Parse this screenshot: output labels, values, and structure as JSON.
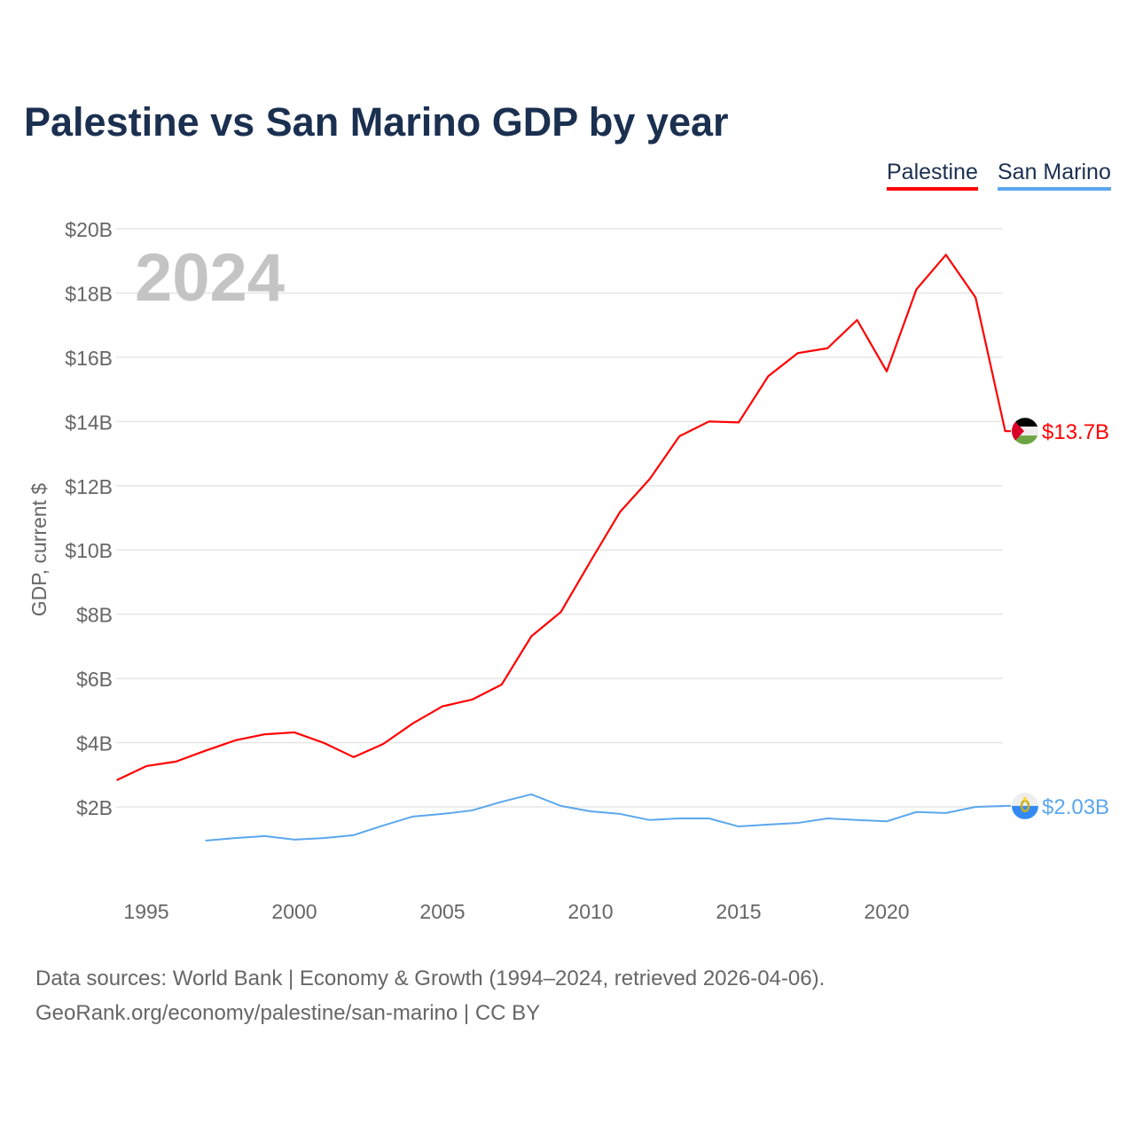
{
  "title": "Palestine vs San Marino GDP by year",
  "source_line1": "Data sources: World Bank | Economy & Growth (1994–2024, retrieved 2026-04-06).",
  "source_line2": "GeoRank.org/economy/palestine/san-marino | CC BY",
  "chart_data": {
    "type": "line",
    "title": "Palestine vs San Marino GDP by year",
    "ylabel": "GDP, current $",
    "xlabel": "",
    "year_watermark": "2024",
    "ylim": [
      0,
      20
    ],
    "xlim": [
      1994,
      2024
    ],
    "y_ticks": [
      {
        "v": 2,
        "label": "$2B"
      },
      {
        "v": 4,
        "label": "$4B"
      },
      {
        "v": 6,
        "label": "$6B"
      },
      {
        "v": 8,
        "label": "$8B"
      },
      {
        "v": 10,
        "label": "$10B"
      },
      {
        "v": 12,
        "label": "$12B"
      },
      {
        "v": 14,
        "label": "$14B"
      },
      {
        "v": 16,
        "label": "$16B"
      },
      {
        "v": 18,
        "label": "$18B"
      },
      {
        "v": 20,
        "label": "$20B"
      }
    ],
    "x_ticks": [
      {
        "v": 1995,
        "label": "1995"
      },
      {
        "v": 2000,
        "label": "2000"
      },
      {
        "v": 2005,
        "label": "2005"
      },
      {
        "v": 2010,
        "label": "2010"
      },
      {
        "v": 2015,
        "label": "2015"
      },
      {
        "v": 2020,
        "label": "2020"
      }
    ],
    "grid": true,
    "legend": "top-right",
    "series": [
      {
        "name": "Palestine",
        "color": "#ff0000",
        "flag": "palestine-flag",
        "end_label": "$13.7B",
        "x": [
          1994,
          1995,
          1996,
          1997,
          1998,
          1999,
          2000,
          2001,
          2002,
          2003,
          2004,
          2005,
          2006,
          2007,
          2008,
          2009,
          2010,
          2011,
          2012,
          2013,
          2014,
          2015,
          2016,
          2017,
          2018,
          2019,
          2020,
          2021,
          2022,
          2023,
          2024
        ],
        "values": [
          2.83,
          3.27,
          3.41,
          3.75,
          4.07,
          4.26,
          4.32,
          3.99,
          3.55,
          3.96,
          4.6,
          5.13,
          5.34,
          5.81,
          7.31,
          8.07,
          9.65,
          11.19,
          12.21,
          13.54,
          14.0,
          13.97,
          15.41,
          16.13,
          16.28,
          17.16,
          15.56,
          18.11,
          19.19,
          17.86,
          13.7
        ]
      },
      {
        "name": "San Marino",
        "color": "#5ba7ee",
        "flag": "san-marino-flag",
        "end_label": "$2.03B",
        "x": [
          1997,
          1998,
          1999,
          2000,
          2001,
          2002,
          2003,
          2004,
          2005,
          2006,
          2007,
          2008,
          2009,
          2010,
          2011,
          2012,
          2013,
          2014,
          2015,
          2016,
          2017,
          2018,
          2019,
          2020,
          2021,
          2022,
          2023,
          2024
        ],
        "values": [
          0.95,
          1.03,
          1.09,
          0.98,
          1.03,
          1.12,
          1.42,
          1.7,
          1.78,
          1.89,
          2.16,
          2.39,
          2.03,
          1.86,
          1.78,
          1.59,
          1.64,
          1.64,
          1.39,
          1.45,
          1.5,
          1.64,
          1.59,
          1.55,
          1.84,
          1.81,
          2.0,
          2.03
        ]
      }
    ]
  }
}
